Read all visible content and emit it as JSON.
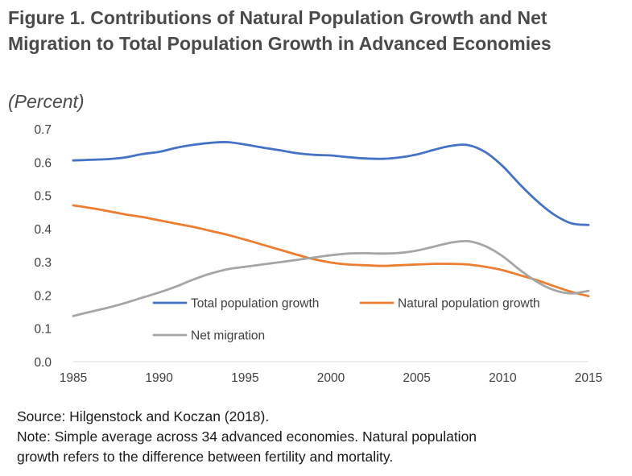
{
  "title": "Figure 1. Contributions of Natural Population Growth and Net Migration to Total Population Growth in Advanced Economies",
  "subtitle": "(Percent)",
  "source": "Source: Hilgenstock and Koczan (2018).",
  "note_line1": "Note: Simple average across 34 advanced economies. Natural population",
  "note_line2": "growth refers to the difference between fertility and mortality.",
  "chart_data": {
    "type": "line",
    "title": "",
    "xlabel": "",
    "ylabel": "",
    "xlim": [
      1985,
      2015
    ],
    "ylim": [
      0,
      0.7
    ],
    "grid": false,
    "legend": "inside-bottom",
    "x_ticks": [
      "1985",
      "1990",
      "1995",
      "2000",
      "2005",
      "2010",
      "2015"
    ],
    "y_ticks": [
      "0.0",
      "0.1",
      "0.2",
      "0.3",
      "0.4",
      "0.5",
      "0.6",
      "0.7"
    ],
    "x": [
      1985,
      1986,
      1987,
      1988,
      1989,
      1990,
      1991,
      1992,
      1993,
      1994,
      1995,
      1996,
      1997,
      1998,
      1999,
      2000,
      2001,
      2002,
      2003,
      2004,
      2005,
      2006,
      2007,
      2008,
      2009,
      2010,
      2011,
      2012,
      2013,
      2014,
      2015
    ],
    "series": [
      {
        "name": "Total population growth",
        "color": "#4472C4",
        "values": [
          0.605,
          0.607,
          0.609,
          0.614,
          0.624,
          0.631,
          0.643,
          0.652,
          0.658,
          0.66,
          0.653,
          0.644,
          0.636,
          0.627,
          0.622,
          0.62,
          0.615,
          0.611,
          0.61,
          0.614,
          0.623,
          0.637,
          0.649,
          0.651,
          0.63,
          0.588,
          0.533,
          0.483,
          0.442,
          0.416,
          0.411
        ]
      },
      {
        "name": "Natural population growth",
        "color": "#ED7D31",
        "values": [
          0.47,
          0.462,
          0.453,
          0.443,
          0.435,
          0.425,
          0.415,
          0.405,
          0.393,
          0.381,
          0.367,
          0.352,
          0.337,
          0.322,
          0.308,
          0.298,
          0.292,
          0.29,
          0.288,
          0.29,
          0.292,
          0.294,
          0.294,
          0.292,
          0.285,
          0.275,
          0.26,
          0.245,
          0.227,
          0.21,
          0.197
        ]
      },
      {
        "name": "Net migration",
        "color": "#A5A5A5",
        "values": [
          0.137,
          0.15,
          0.162,
          0.176,
          0.192,
          0.208,
          0.226,
          0.247,
          0.265,
          0.278,
          0.285,
          0.292,
          0.299,
          0.306,
          0.313,
          0.32,
          0.325,
          0.326,
          0.325,
          0.327,
          0.334,
          0.346,
          0.358,
          0.362,
          0.347,
          0.317,
          0.276,
          0.24,
          0.215,
          0.205,
          0.213
        ]
      }
    ]
  }
}
